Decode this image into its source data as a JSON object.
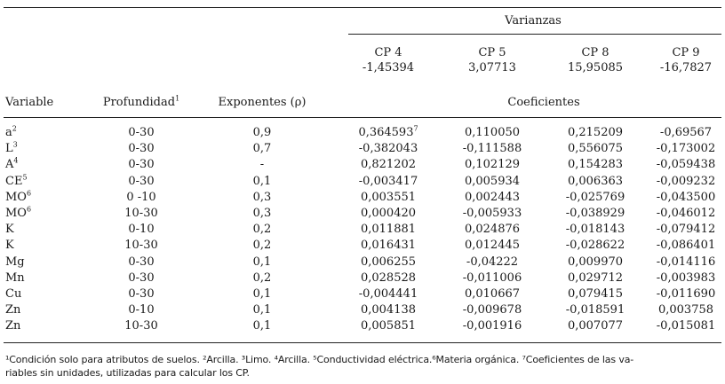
{
  "header": {
    "varianzas_label": "Varianzas",
    "coeficientes_label": "Coeficientes",
    "col_variable": "Variable",
    "col_profundidad": "Profundidad",
    "col_profundidad_sup": "1",
    "col_exponentes": "Exponentes (ρ)",
    "components": [
      {
        "name": "CP 4",
        "variance": "-1,45394"
      },
      {
        "name": "CP 5",
        "variance": "3,07713"
      },
      {
        "name": "CP 8",
        "variance": "15,95085"
      },
      {
        "name": "CP 9",
        "variance": "-16,7827"
      }
    ]
  },
  "rows": [
    {
      "variable": "a",
      "sup": "2",
      "depth": "0-30",
      "exp": "0,9",
      "cp4": "0,364593",
      "cp4_sup": "7",
      "cp5": "0,110050",
      "cp8": "0,215209",
      "cp9": "-0,69567"
    },
    {
      "variable": "L",
      "sup": "3",
      "depth": "0-30",
      "exp": "0,7",
      "cp4": "-0,382043",
      "cp4_sup": "",
      "cp5": "-0,111588",
      "cp8": "0,556075",
      "cp9": "-0,173002"
    },
    {
      "variable": "A",
      "sup": "4",
      "depth": "0-30",
      "exp": "-",
      "cp4": "0,821202",
      "cp4_sup": "",
      "cp5": "0,102129",
      "cp8": "0,154283",
      "cp9": "-0,059438"
    },
    {
      "variable": "CE",
      "sup": "5",
      "depth": "0-30",
      "exp": "0,1",
      "cp4": "-0,003417",
      "cp4_sup": "",
      "cp5": "0,005934",
      "cp8": "0,006363",
      "cp9": "-0,009232"
    },
    {
      "variable": "MO",
      "sup": "6",
      "depth": "0 -10",
      "exp": "0,3",
      "cp4": "0,003551",
      "cp4_sup": "",
      "cp5": "0,002443",
      "cp8": "-0,025769",
      "cp9": "-0,043500"
    },
    {
      "variable": "MO",
      "sup": "6",
      "depth": "10-30",
      "exp": "0,3",
      "cp4": "0,000420",
      "cp4_sup": "",
      "cp5": "-0,005933",
      "cp8": "-0,038929",
      "cp9": "-0,046012"
    },
    {
      "variable": "K",
      "sup": "",
      "depth": "0-10",
      "exp": "0,2",
      "cp4": "0,011881",
      "cp4_sup": "",
      "cp5": "0,024876",
      "cp8": "-0,018143",
      "cp9": "-0,079412"
    },
    {
      "variable": "K",
      "sup": "",
      "depth": "10-30",
      "exp": "0,2",
      "cp4": "0,016431",
      "cp4_sup": "",
      "cp5": "0,012445",
      "cp8": "-0,028622",
      "cp9": "-0,086401"
    },
    {
      "variable": "Mg",
      "sup": "",
      "depth": "0-30",
      "exp": "0,1",
      "cp4": "0,006255",
      "cp4_sup": "",
      "cp5": "-0,04222",
      "cp8": "0,009970",
      "cp9": "-0,014116"
    },
    {
      "variable": "Mn",
      "sup": "",
      "depth": "0-30",
      "exp": "0,2",
      "cp4": "0,028528",
      "cp4_sup": "",
      "cp5": "-0,011006",
      "cp8": "0,029712",
      "cp9": "-0,003983"
    },
    {
      "variable": "Cu",
      "sup": "",
      "depth": "0-30",
      "exp": "0,1",
      "cp4": "-0,004441",
      "cp4_sup": "",
      "cp5": "0,010667",
      "cp8": "0,079415",
      "cp9": "-0,011690"
    },
    {
      "variable": "Zn",
      "sup": "",
      "depth": "0-10",
      "exp": "0,1",
      "cp4": "0,004138",
      "cp4_sup": "",
      "cp5": "-0,009678",
      "cp8": "-0,018591",
      "cp9": "0,003758"
    },
    {
      "variable": "Zn",
      "sup": "",
      "depth": "10-30",
      "exp": "0,1",
      "cp4": "0,005851",
      "cp4_sup": "",
      "cp5": "-0,001916",
      "cp8": "0,007077",
      "cp9": "-0,015081"
    }
  ],
  "footnote": {
    "line1": "¹Condición solo para atributos de suelos. ²Arcilla. ³Limo. ⁴Arcilla. ⁵Conductividad eléctrica.⁶Materia orgánica. ⁷Coeficientes de las va-",
    "line2": "riables sin unidades, utilizadas para calcular los CP."
  }
}
